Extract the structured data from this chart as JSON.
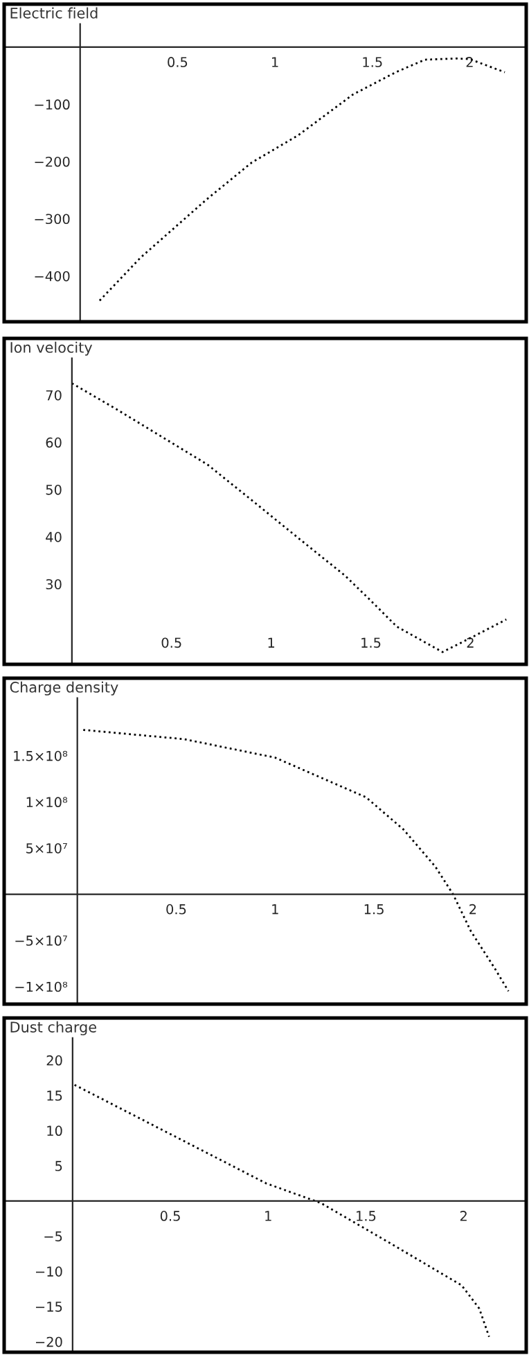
{
  "chart_data": [
    {
      "type": "line",
      "title": "Electric field",
      "line_style": "dotted",
      "x": [
        0.1,
        0.31,
        0.65,
        0.88,
        1.12,
        1.4,
        1.62,
        1.77,
        1.93,
        2.0,
        2.18
      ],
      "series": [
        {
          "color": "#000000",
          "values": [
            -443,
            -368,
            -266,
            -202,
            -154,
            -83,
            -44,
            -22,
            -20,
            -21,
            -44
          ]
        }
      ],
      "xlim": [
        -0.39,
        2.29
      ],
      "ylim": [
        -480,
        75
      ],
      "xticks": [
        0.5,
        1,
        1.5,
        2
      ],
      "yticks": [
        {
          "value": -400,
          "label": "−400"
        },
        {
          "value": -300,
          "label": "−300"
        },
        {
          "value": -200,
          "label": "−200"
        },
        {
          "value": -100,
          "label": "−100"
        }
      ]
    },
    {
      "type": "line",
      "title": "Ion velocity",
      "line_style": "dotted",
      "x": [
        0.0,
        0.22,
        0.45,
        0.68,
        0.91,
        1.14,
        1.37,
        1.49,
        1.63,
        1.86,
        2.02,
        2.18
      ],
      "series": [
        {
          "color": "#000000",
          "values": [
            72.5,
            67.1,
            61.2,
            55.3,
            47.5,
            39.6,
            31.8,
            26.9,
            21.0,
            15.6,
            19.0,
            22.5
          ]
        }
      ],
      "xlim": [
        -0.34,
        2.28
      ],
      "ylim": [
        13,
        82
      ],
      "xticks": [
        0.5,
        1,
        1.5,
        2
      ],
      "yticks": [
        30,
        40,
        50,
        60,
        70
      ]
    },
    {
      "type": "line",
      "title": "Charge density",
      "line_style": "dotted",
      "x": [
        0.03,
        0.54,
        1.0,
        1.46,
        1.65,
        1.81,
        1.9,
        1.99,
        2.11,
        2.18
      ],
      "series": [
        {
          "color": "#000000",
          "values": [
            178000000,
            168000000,
            148000000,
            105000000,
            70000000,
            30000000,
            0,
            -40000000,
            -80000000,
            -105000000
          ]
        }
      ],
      "xlim": [
        -0.37,
        2.27
      ],
      "ylim": [
        -119000000,
        234000000
      ],
      "xticks": [
        0.5,
        1,
        1.5,
        2
      ],
      "yticks": [
        {
          "value": -100000000,
          "label": "−1×10⁸"
        },
        {
          "value": -50000000,
          "label": "−5×10⁷"
        },
        {
          "value": 50000000,
          "label": "5×10⁷"
        },
        {
          "value": 100000000,
          "label": "1×10⁸"
        },
        {
          "value": 150000000,
          "label": "1.5×10⁸"
        }
      ]
    },
    {
      "type": "line",
      "title": "Dust charge",
      "line_style": "dotted",
      "x": [
        0.01,
        0.57,
        0.99,
        1.27,
        1.63,
        1.99,
        2.08,
        2.13
      ],
      "series": [
        {
          "color": "#000000",
          "values": [
            16.5,
            8.5,
            2.5,
            -0.3,
            -6.1,
            -12.0,
            -15.3,
            -19.3
          ]
        }
      ],
      "xlim": [
        -0.35,
        2.32
      ],
      "ylim": [
        -21.5,
        26
      ],
      "xticks": [
        0.5,
        1,
        1.5,
        2
      ],
      "yticks": [
        {
          "value": -20,
          "label": "−20"
        },
        {
          "value": -15,
          "label": "−15"
        },
        {
          "value": -10,
          "label": "−10"
        },
        {
          "value": -5,
          "label": "−5"
        },
        5,
        10,
        15,
        20
      ]
    }
  ]
}
